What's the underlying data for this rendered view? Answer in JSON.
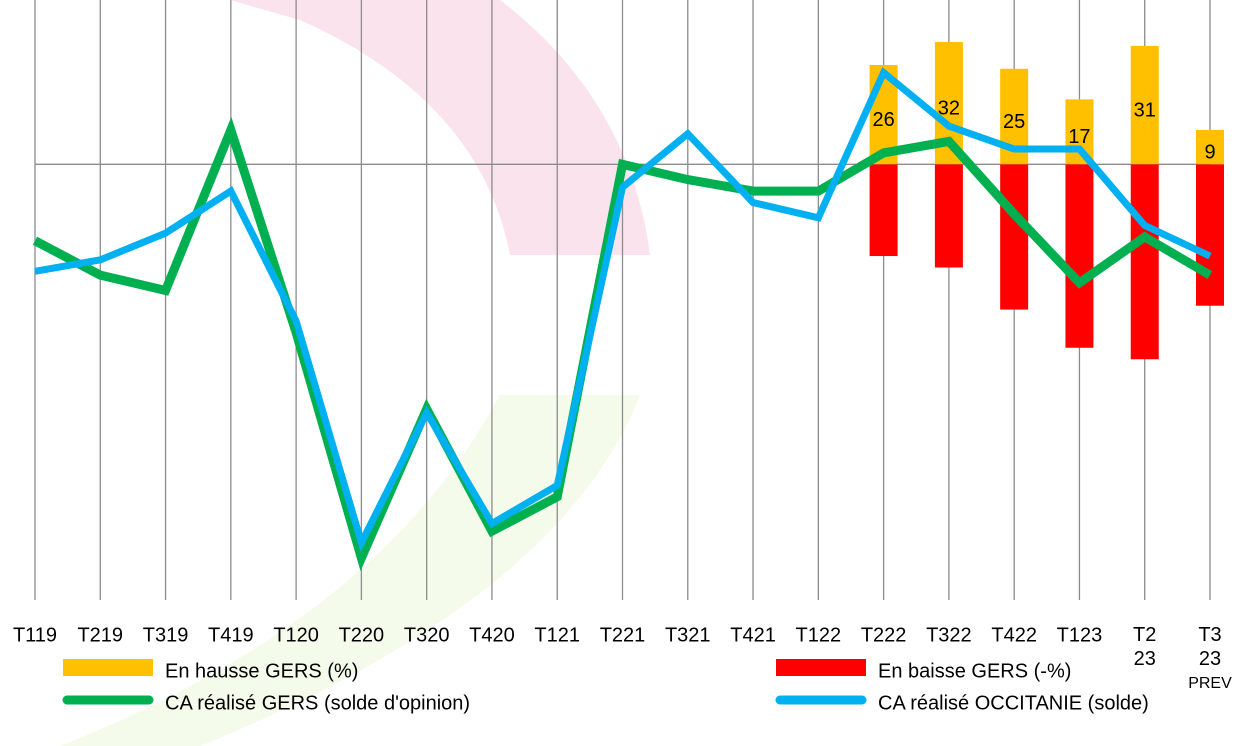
{
  "chart_data": {
    "type": "bar-line",
    "categories": [
      "T119",
      "T219",
      "T319",
      "T419",
      "T120",
      "T220",
      "T320",
      "T420",
      "T121",
      "T221",
      "T321",
      "T421",
      "T122",
      "T222",
      "T322",
      "T422",
      "T123",
      "T2\n23",
      "T3\n23\nPREV"
    ],
    "ylim": [
      -114,
      43
    ],
    "series": [
      {
        "name": "En hausse GERS (%)",
        "kind": "bar",
        "color": "#ffc000",
        "values": [
          null,
          null,
          null,
          null,
          null,
          null,
          null,
          null,
          null,
          null,
          null,
          null,
          null,
          26,
          32,
          25,
          17,
          31,
          9
        ],
        "data_labels": true
      },
      {
        "name": "En baisse GERS (-%)",
        "kind": "bar",
        "color": "#ff0000",
        "values": [
          null,
          null,
          null,
          null,
          null,
          null,
          null,
          null,
          null,
          null,
          null,
          null,
          null,
          -24,
          -27,
          -38,
          -48,
          -51,
          -37
        ]
      },
      {
        "name": "CA réalisé GERS  (solde d'opinion)",
        "kind": "line",
        "color": "#00b050",
        "values": [
          -20,
          -29,
          -33,
          9,
          -44,
          -103,
          -64,
          -96,
          -87,
          0,
          -4,
          -7,
          -7,
          3,
          6,
          -13,
          -31,
          -19,
          -29
        ]
      },
      {
        "name": "CA réalisé OCCITANIE (solde)",
        "kind": "line",
        "color": "#00b0f0",
        "values": [
          -28,
          -25,
          -18,
          -7,
          -41,
          -99,
          -65,
          -94,
          -84,
          -6,
          8,
          -10,
          -14,
          24,
          10,
          4,
          4,
          -16,
          -24
        ]
      }
    ]
  }
}
